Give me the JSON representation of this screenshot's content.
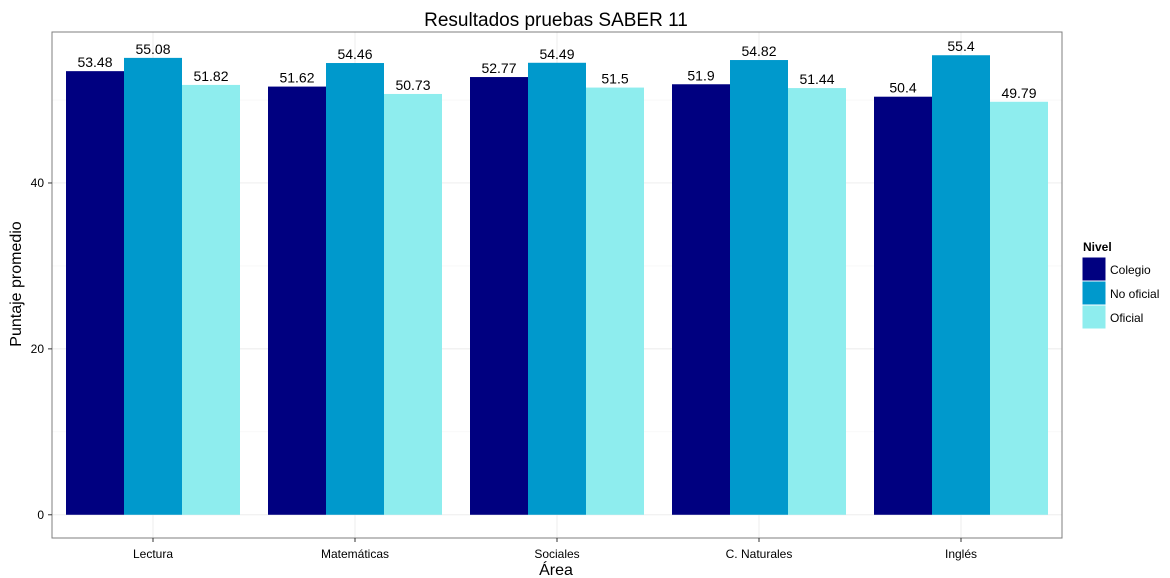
{
  "chart_data": {
    "type": "bar",
    "title": "Resultados pruebas SABER 11",
    "xlabel": "Área",
    "ylabel": "Puntaje promedio",
    "categories": [
      "Lectura",
      "Matemáticas",
      "Sociales",
      "C. Naturales",
      "Inglés"
    ],
    "series": [
      {
        "name": "Colegio",
        "color": "#000080",
        "values": [
          53.48,
          51.62,
          52.77,
          51.9,
          50.4
        ]
      },
      {
        "name": "No oficial",
        "color": "#0099cc",
        "values": [
          55.08,
          54.46,
          54.49,
          54.82,
          55.4
        ]
      },
      {
        "name": "Oficial",
        "color": "#8eedee",
        "values": [
          51.82,
          50.73,
          51.5,
          51.44,
          49.79
        ]
      }
    ],
    "yticks": [
      0,
      20,
      40
    ],
    "ylim": [
      -2.8,
      58.2
    ],
    "grid": true,
    "legend": {
      "title": "Nivel",
      "position": "right"
    }
  }
}
